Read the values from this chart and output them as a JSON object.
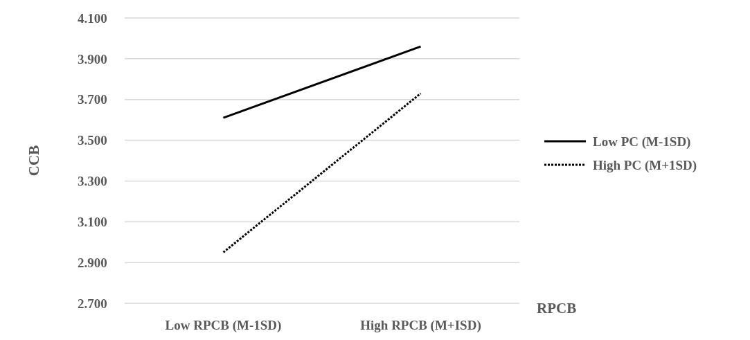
{
  "chart_data": {
    "type": "line",
    "xlabel": "RPCB",
    "ylabel": "CCB",
    "categories": [
      "Low RPCB (M-1SD)",
      "High RPCB (M+ISD)"
    ],
    "series": [
      {
        "name": "Low PC (M-1SD)",
        "color": "#000000",
        "values": [
          3.61,
          3.96
        ],
        "line_style": "solid"
      },
      {
        "name": "High PC (M+1SD)",
        "color": "#000000",
        "values": [
          2.95,
          3.73
        ],
        "line_style": "dotted"
      }
    ],
    "ylim": [
      2.7,
      4.1
    ],
    "yticks": [
      {
        "value": 2.7,
        "label": "2.700"
      },
      {
        "value": 2.9,
        "label": "2.900"
      },
      {
        "value": 3.1,
        "label": "3.100"
      },
      {
        "value": 3.3,
        "label": "3.300"
      },
      {
        "value": 3.5,
        "label": "3.500"
      },
      {
        "value": 3.7,
        "label": "3.700"
      },
      {
        "value": 3.9,
        "label": "3.900"
      },
      {
        "value": 4.1,
        "label": "4.100"
      }
    ],
    "grid": "y",
    "legend": "right",
    "marker": "none"
  }
}
